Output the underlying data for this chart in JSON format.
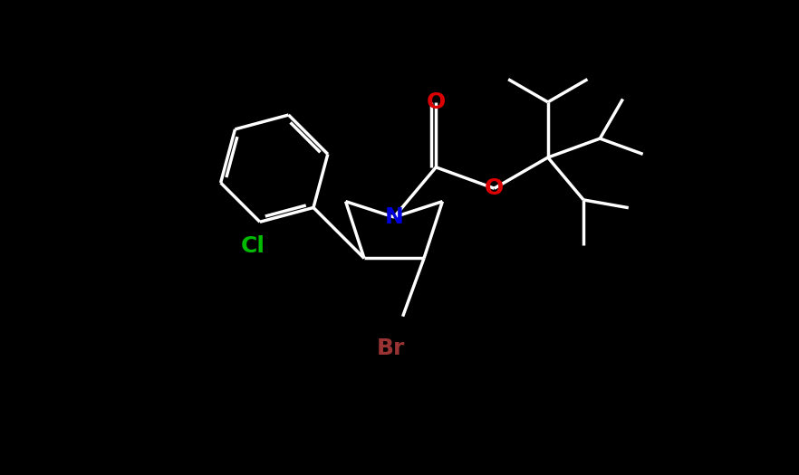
{
  "background_color": "#000000",
  "bond_color": "#ffffff",
  "N_color": "#0000dd",
  "O_color": "#dd0000",
  "Cl_color": "#00bb00",
  "Br_color": "#993333",
  "bond_width": 2.5,
  "font_size": 18,
  "figsize": [
    8.82,
    5.25
  ],
  "dpi": 100,
  "xlim": [
    0,
    8.82
  ],
  "ylim": [
    0,
    5.25
  ],
  "bl": 0.72
}
